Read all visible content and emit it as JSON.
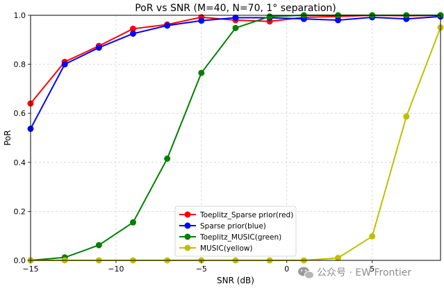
{
  "chart_data": {
    "type": "line",
    "title": "PoR vs SNR (M=40, N=70, 1° separation)",
    "xlabel": "SNR (dB)",
    "ylabel": "PoR",
    "xlim": [
      -15,
      9
    ],
    "ylim": [
      0,
      1
    ],
    "xticks": [
      -15,
      -10,
      -5,
      0,
      5
    ],
    "yticks": [
      0.0,
      0.2,
      0.4,
      0.6,
      0.8,
      1.0
    ],
    "x_tick_labels": [
      "−15",
      "−10",
      "−5",
      "0",
      "5"
    ],
    "y_tick_labels": [
      "0.0",
      "0.2",
      "0.4",
      "0.6",
      "0.8",
      "1.0"
    ],
    "grid": true,
    "legend_position": "lower-center",
    "x": [
      -15,
      -13,
      -11,
      -9,
      -7,
      -5,
      -3,
      -1,
      1,
      3,
      5,
      7,
      9
    ],
    "series": [
      {
        "name": "Toeplitz_Sparse prior(red)",
        "color": "#ff0000",
        "values": [
          0.64,
          0.81,
          0.875,
          0.945,
          0.962,
          0.992,
          0.98,
          0.975,
          0.992,
          0.995,
          1.0,
          0.998,
          1.0
        ]
      },
      {
        "name": "Sparse prior(blue)",
        "color": "#0000ff",
        "values": [
          0.537,
          0.8,
          0.868,
          0.925,
          0.958,
          0.978,
          0.99,
          0.99,
          0.985,
          0.98,
          0.992,
          0.985,
          0.995
        ]
      },
      {
        "name": "Toeplitz_MUSIC(green)",
        "color": "#008000",
        "values": [
          0.0,
          0.012,
          0.062,
          0.155,
          0.415,
          0.765,
          0.948,
          0.995,
          1.0,
          1.0,
          1.0,
          1.0,
          1.0
        ]
      },
      {
        "name": "MUSIC(yellow)",
        "color": "#bfbf00",
        "values": [
          0.0,
          0.0,
          0.0,
          0.0,
          0.0,
          0.0,
          0.0,
          0.0,
          0.0,
          0.01,
          0.098,
          0.587,
          0.95
        ]
      }
    ]
  },
  "watermark": {
    "text": "公众号 · EW Frontier",
    "icon": "wechat-icon"
  }
}
